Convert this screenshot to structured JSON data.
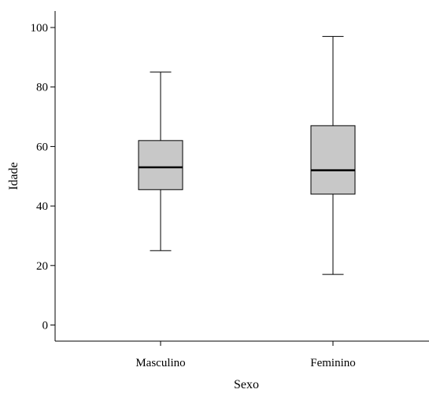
{
  "chart_data": {
    "type": "boxplot",
    "title": "",
    "xlabel": "Sexo",
    "ylabel": "Idade",
    "ylim": [
      -5,
      105
    ],
    "yticks": [
      0,
      20,
      40,
      60,
      80,
      100
    ],
    "grid": false,
    "categories": [
      "Masculino",
      "Feminino"
    ],
    "boxes": [
      {
        "category": "Masculino",
        "min": 25,
        "q1": 45.5,
        "median": 53,
        "q3": 62,
        "max": 85
      },
      {
        "category": "Feminino",
        "min": 17,
        "q1": 44,
        "median": 52,
        "q3": 67,
        "max": 97
      }
    ],
    "colors": {
      "box_fill": "#c8c8c8",
      "line": "#000000",
      "median": "#000000"
    }
  }
}
